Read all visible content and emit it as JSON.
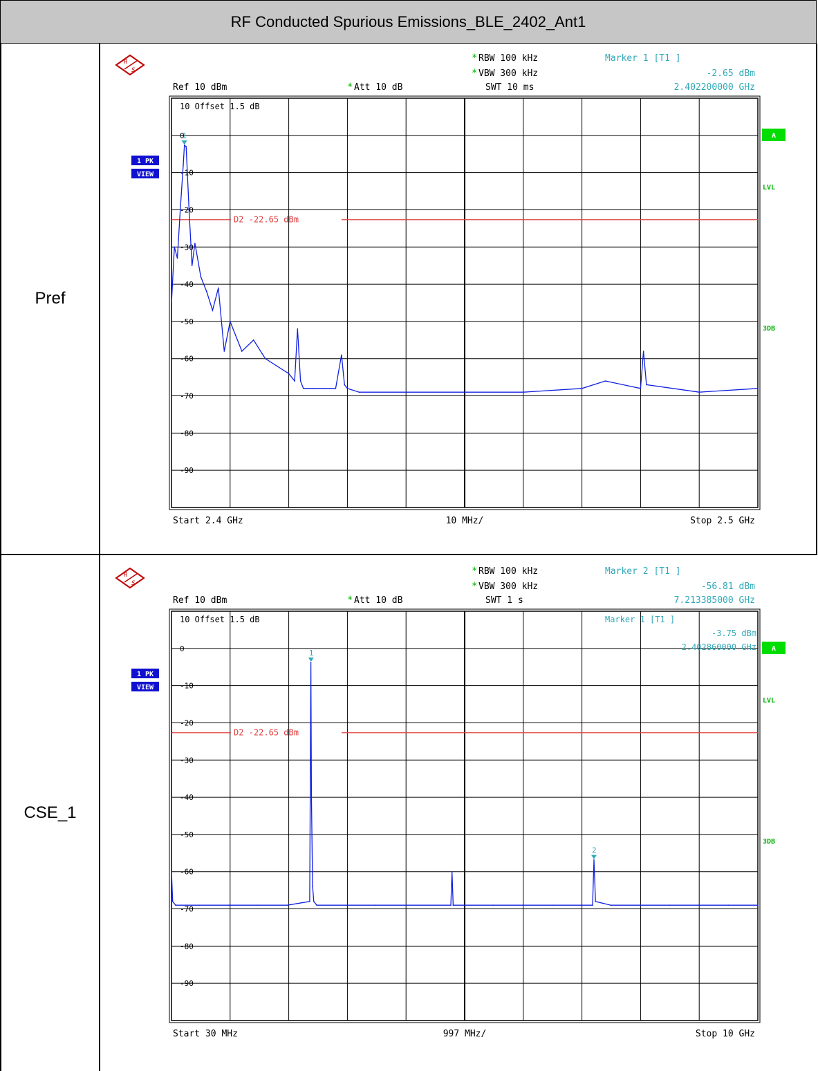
{
  "page_title": "RF Conducted Spurious  Emissions_BLE_2402_Ant1",
  "rows": [
    {
      "label": "Pref"
    },
    {
      "label": "CSE_1"
    }
  ],
  "colors": {
    "trace": "#1020e0",
    "display_line": "#e04040",
    "marker": "#30a8b8",
    "header_text": "#000000",
    "marker_text": "#30a8b8",
    "badge_green": "#00dd00",
    "badge_blue": "#1010d0"
  },
  "chart_data": [
    {
      "type": "line",
      "title": "",
      "header": {
        "rbw": "RBW  100 kHz",
        "vbw": "VBW  300 kHz",
        "swt": "SWT  10 ms",
        "ref": "Ref   10 dBm",
        "att": "Att    10 dB",
        "marker_title": "Marker 1 [T1 ]",
        "marker_level": "-2.65 dBm",
        "marker_freq": "2.402200000 GHz",
        "offset": "10  Offset   1.5 dB"
      },
      "inner_marker": null,
      "side_badges": {
        "pk": "1 PK",
        "view": "VIEW",
        "a": "A",
        "lvl": "LVL",
        "db3": "3DB"
      },
      "footer": {
        "start": "Start  2.4 GHz",
        "span": "10 MHz/",
        "stop": "Stop  2.5 GHz"
      },
      "x_unit": "GHz",
      "xlim": [
        2.4,
        2.5
      ],
      "ylim": [
        -100,
        10
      ],
      "y_ticks": [
        0,
        -10,
        -20,
        -30,
        -40,
        -50,
        -60,
        -70,
        -80,
        -90
      ],
      "y_tick_labels": [
        "0",
        "-10",
        "-20",
        "-30",
        "-40",
        "-50",
        "-60",
        "-70",
        "-80",
        "-90"
      ],
      "display_line": {
        "label": "D2  -22.65 dBm",
        "value": -22.65
      },
      "markers": [
        {
          "label": "1",
          "x": 2.4022,
          "y": -2.65
        }
      ],
      "series": [
        {
          "name": "",
          "x": [
            2.4,
            2.4005,
            2.401,
            2.4015,
            2.402,
            2.4022,
            2.4025,
            2.403,
            2.4035,
            2.404,
            2.405,
            2.406,
            2.407,
            2.408,
            2.409,
            2.41,
            2.412,
            2.414,
            2.416,
            2.418,
            2.42,
            2.421,
            2.4215,
            2.422,
            2.4225,
            2.424,
            2.426,
            2.428,
            2.429,
            2.4295,
            2.43,
            2.432,
            2.44,
            2.45,
            2.46,
            2.47,
            2.474,
            2.48,
            2.4805,
            2.481,
            2.49,
            2.5
          ],
          "y": [
            -45,
            -30,
            -33,
            -20,
            -8,
            -2.65,
            -3,
            -20,
            -35,
            -29,
            -38,
            -42,
            -47,
            -41,
            -58,
            -50,
            -58,
            -55,
            -60,
            -62,
            -64,
            -66,
            -52,
            -66,
            -68,
            -68,
            -68,
            -68,
            -59,
            -67,
            -68,
            -69,
            -69,
            -69,
            -69,
            -68,
            -66,
            -68,
            -58,
            -67,
            -69,
            -68
          ]
        }
      ]
    },
    {
      "type": "line",
      "title": "",
      "header": {
        "rbw": "RBW  100 kHz",
        "vbw": "VBW  300 kHz",
        "swt": "SWT  1 s",
        "ref": "Ref   10 dBm",
        "att": "Att    10 dB",
        "marker_title": "Marker 2 [T1 ]",
        "marker_level": "-56.81 dBm",
        "marker_freq": "7.213385000 GHz",
        "offset": "10  Offset   1.5 dB"
      },
      "inner_marker": {
        "title": "Marker 1 [T1 ]",
        "level": "-3.75 dBm",
        "freq": "2.402860000 GHz"
      },
      "side_badges": {
        "pk": "1 PK",
        "view": "VIEW",
        "a": "A",
        "lvl": "LVL",
        "db3": "3DB"
      },
      "footer": {
        "start": "Start  30 MHz",
        "span": "997 MHz/",
        "stop": "Stop  10 GHz"
      },
      "x_unit": "GHz",
      "xlim": [
        0.03,
        10.0
      ],
      "ylim": [
        -100,
        10
      ],
      "y_ticks": [
        0,
        -10,
        -20,
        -30,
        -40,
        -50,
        -60,
        -70,
        -80,
        -90
      ],
      "y_tick_labels": [
        "0",
        "-10",
        "-20",
        "-30",
        "-40",
        "-50",
        "-60",
        "-70",
        "-80",
        "-90"
      ],
      "display_line": {
        "label": "D2  -22.65 dBm",
        "value": -22.65
      },
      "markers": [
        {
          "label": "1",
          "x": 2.40286,
          "y": -3.75
        },
        {
          "label": "2",
          "x": 7.213385,
          "y": -56.81
        }
      ],
      "series": [
        {
          "name": "",
          "x": [
            0.03,
            0.05,
            0.1,
            0.5,
            1.0,
            1.5,
            2.0,
            2.38,
            2.4,
            2.41,
            2.43,
            2.45,
            2.5,
            3.0,
            3.5,
            4.0,
            4.78,
            4.8,
            4.82,
            5.0,
            5.5,
            6.0,
            6.5,
            7.0,
            7.19,
            7.213,
            7.24,
            7.5,
            8.0,
            8.5,
            9.0,
            9.5,
            10.0
          ],
          "y": [
            -60,
            -68,
            -69,
            -69,
            -69,
            -69,
            -69,
            -68,
            -3.75,
            -40,
            -64,
            -68,
            -69,
            -69,
            -69,
            -69,
            -69,
            -60,
            -69,
            -69,
            -69,
            -69,
            -69,
            -69,
            -69,
            -56.81,
            -68,
            -69,
            -69,
            -69,
            -69,
            -69,
            -69
          ]
        }
      ]
    }
  ]
}
